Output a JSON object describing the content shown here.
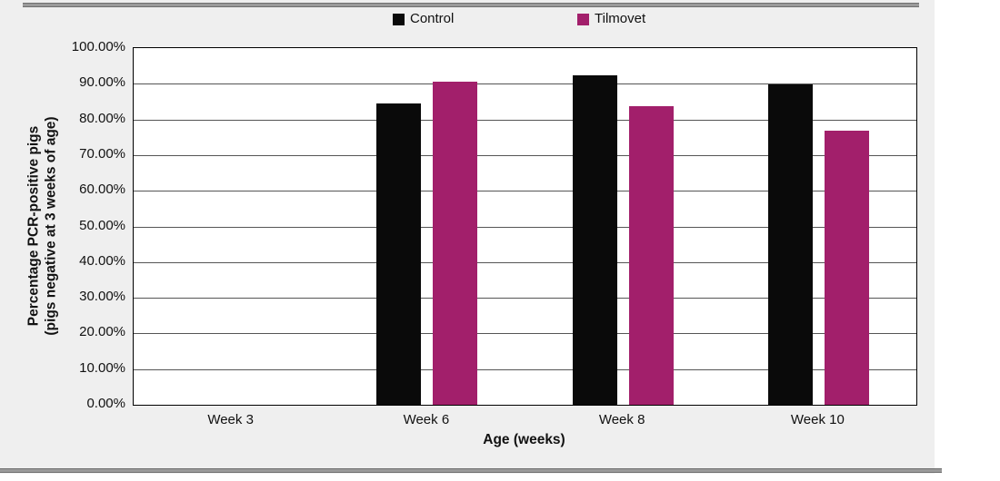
{
  "page": {
    "panel_background": "#efefef",
    "rule_color": "#9a9a9a",
    "plot_background": "#ffffff",
    "gridline_color": "#555555"
  },
  "legend": {
    "items": [
      {
        "label": "Control",
        "color": "#0a0a0a"
      },
      {
        "label": "Tilmovet",
        "color": "#a21f6b"
      }
    ]
  },
  "chart_data": {
    "type": "bar",
    "title": "",
    "categories": [
      "Week 3",
      "Week 6",
      "Week 8",
      "Week 10"
    ],
    "series": [
      {
        "name": "Control",
        "color": "#0a0a0a",
        "values": [
          0,
          84.6,
          92.3,
          89.7
        ]
      },
      {
        "name": "Tilmovet",
        "color": "#a21f6b",
        "values": [
          0,
          90.6,
          83.6,
          76.9
        ]
      }
    ],
    "xlabel": "Age (weeks)",
    "ylabel_line1": "Percentage PCR-positive pigs",
    "ylabel_line2": "(pigs negative at 3 weeks of age)",
    "ylim": [
      0,
      100
    ],
    "ytick_step": 10,
    "yticklabels": [
      "0.00%",
      "10.00%",
      "20.00%",
      "30.00%",
      "40.00%",
      "50.00%",
      "60.00%",
      "70.00%",
      "80.00%",
      "90.00%",
      "100.00%"
    ],
    "grid": true,
    "legend_position": "top"
  }
}
